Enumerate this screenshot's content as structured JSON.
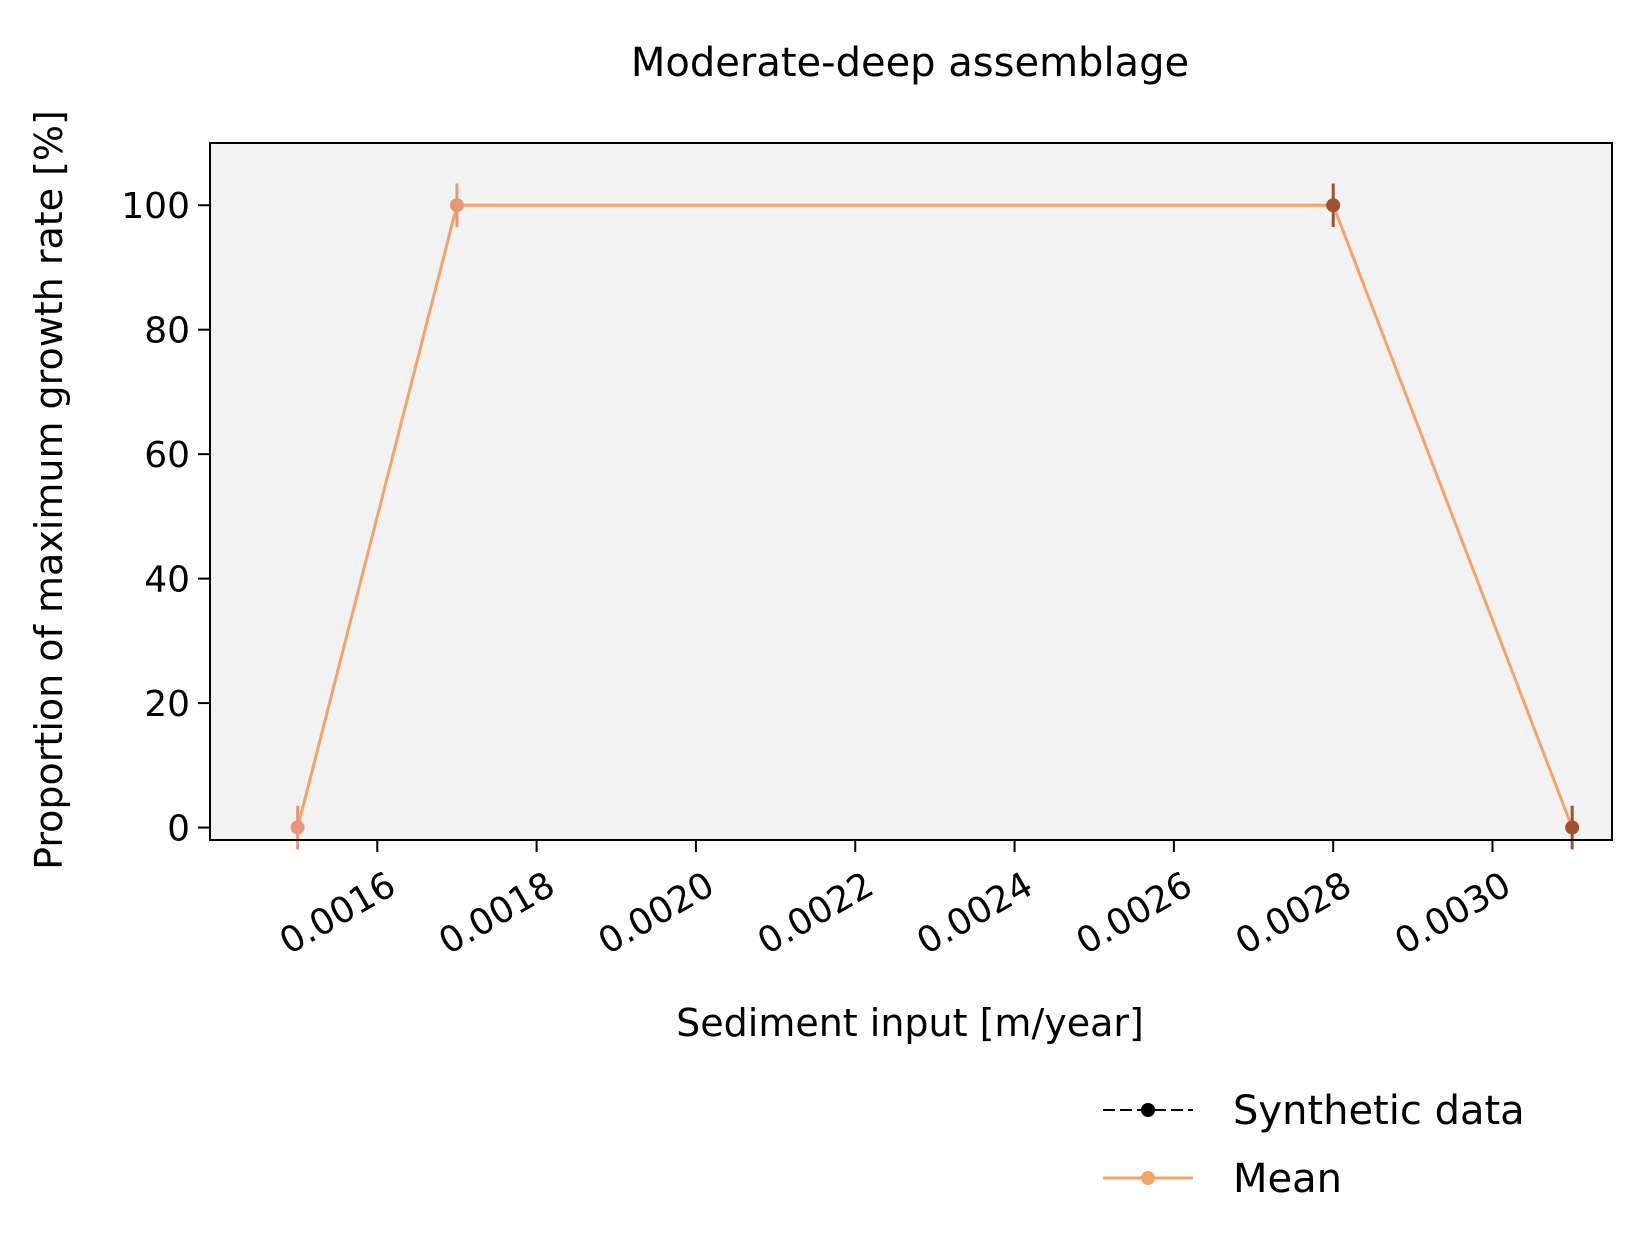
{
  "chart_data": {
    "type": "line",
    "title": "Moderate-deep assemblage",
    "xlabel": "Sediment input [m/year]",
    "ylabel": "Proportion of maximum growth rate [%]",
    "xlim": [
      0.00139,
      0.00315
    ],
    "ylim": [
      -2,
      110
    ],
    "xticks": [
      "0.0016",
      "0.0018",
      "0.0020",
      "0.0022",
      "0.0024",
      "0.0026",
      "0.0028",
      "0.0030"
    ],
    "xtick_values": [
      0.0016,
      0.0018,
      0.002,
      0.0022,
      0.0024,
      0.0026,
      0.0028,
      0.003
    ],
    "yticks": [
      "0",
      "20",
      "40",
      "60",
      "80",
      "100"
    ],
    "ytick_values": [
      0,
      20,
      40,
      60,
      80,
      100
    ],
    "grid": false,
    "legend_position": "bottom-right, below axes",
    "background_color": "#f2f2f2",
    "series": [
      {
        "name": "Synthetic data",
        "style": "dashed",
        "color": "#000000",
        "x": [
          0.0015,
          0.0017,
          0.0028,
          0.0031
        ],
        "y": [
          0,
          100,
          100,
          0
        ]
      },
      {
        "name": "Mean",
        "style": "solid",
        "color": "#f4a46a",
        "x": [
          0.0015,
          0.0017,
          0.0028,
          0.0031
        ],
        "y": [
          0,
          100,
          100,
          0
        ]
      }
    ],
    "points": [
      {
        "x": 0.0015,
        "y": 0,
        "color": "#e8957a",
        "err": 3.5
      },
      {
        "x": 0.0017,
        "y": 100,
        "color": "#e8957a",
        "err": 3.5
      },
      {
        "x": 0.0028,
        "y": 100,
        "color": "#a0522d",
        "err": 3.5
      },
      {
        "x": 0.0031,
        "y": 0,
        "color": "#a0522d",
        "err": 3.5
      }
    ]
  }
}
